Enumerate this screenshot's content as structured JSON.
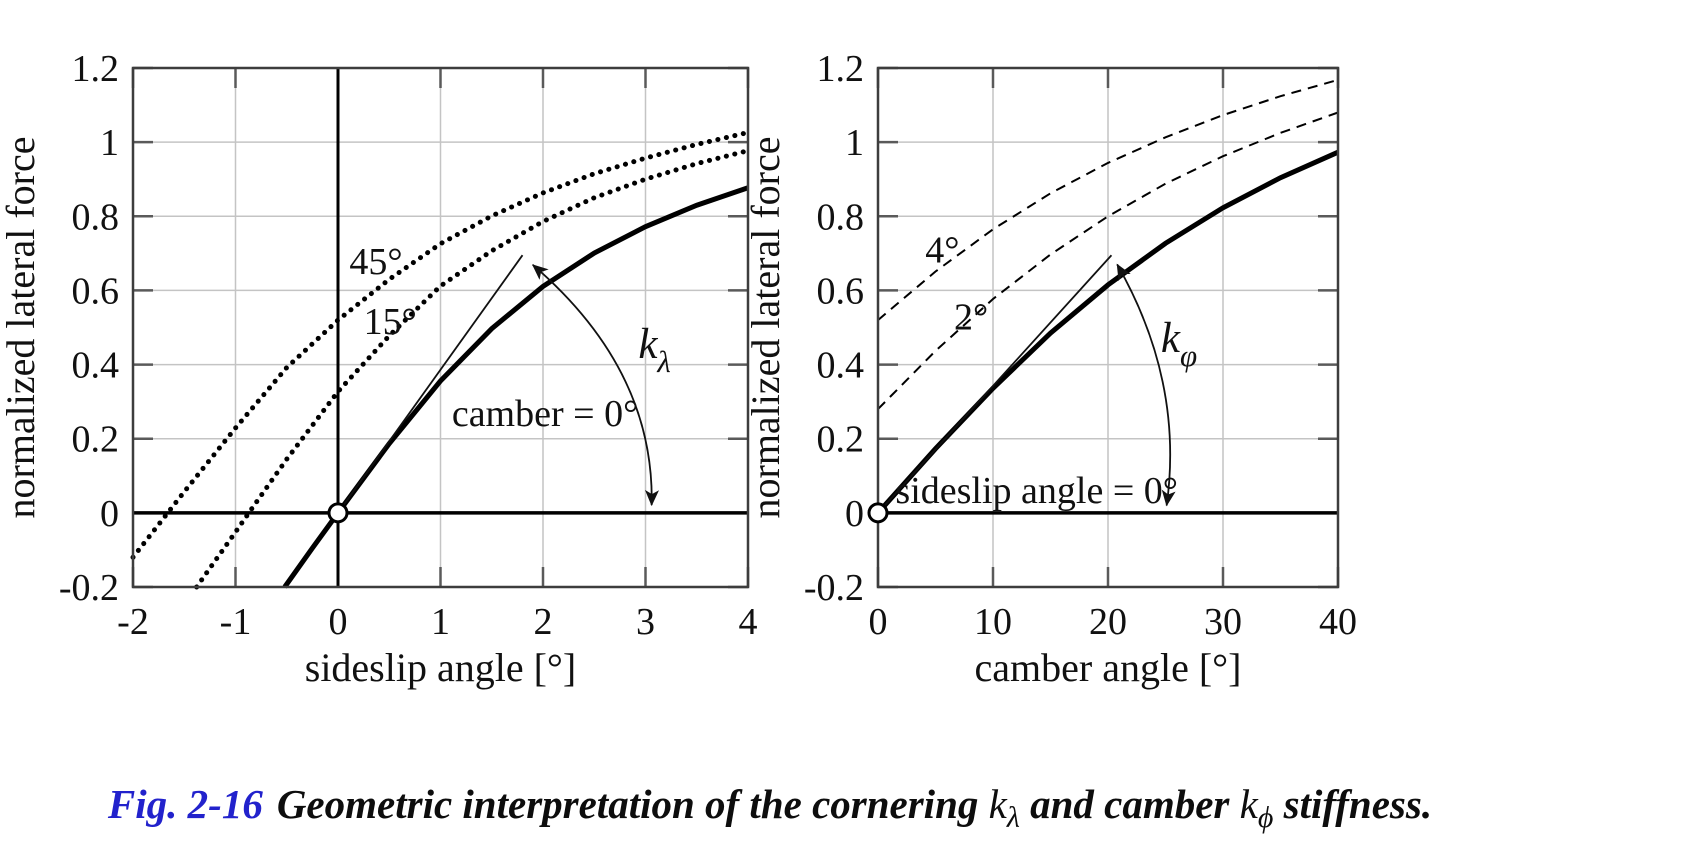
{
  "caption": {
    "fig_label": "Fig. 2-16",
    "body_1": "Geometric interpretation of the cornering ",
    "k_1": "k",
    "sub_1": "λ",
    "body_2": " and camber ",
    "k_2": "k",
    "sub_2": "ϕ",
    "body_3": " stiffness.",
    "accent_color": "#2222cc"
  },
  "chart_data": [
    {
      "type": "line",
      "title": "",
      "xlabel": "sideslip angle [°]",
      "ylabel": "normalized lateral force",
      "xlim": [
        -2,
        4
      ],
      "ylim": [
        -0.2,
        1.2
      ],
      "grid": true,
      "legend": "none",
      "zero_line_horizontal": true,
      "zero_line_vertical": true,
      "xtick_values": [
        -2,
        -1,
        0,
        1,
        2,
        3,
        4
      ],
      "xtick_labels": [
        "-2",
        "-1",
        "0",
        "1",
        "2",
        "3",
        "4"
      ],
      "ytick_values": [
        -0.2,
        0,
        0.2,
        0.4,
        0.6,
        0.8,
        1,
        1.2
      ],
      "ytick_labels": [
        "-0.2",
        "0",
        "0.2",
        "0.4",
        "0.6",
        "0.8",
        "1",
        "1.2"
      ],
      "series": [
        {
          "id": "camber45",
          "name": "45°",
          "line": "dotted",
          "points": [
            [
              -2,
              -0.12
            ],
            [
              -1.5,
              0.057
            ],
            [
              -1,
              0.229
            ],
            [
              -0.5,
              0.392
            ],
            [
              0,
              0.52
            ],
            [
              0.5,
              0.63
            ],
            [
              1,
              0.726
            ],
            [
              1.5,
              0.801
            ],
            [
              2,
              0.863
            ],
            [
              2.5,
              0.915
            ],
            [
              3,
              0.957
            ],
            [
              3.5,
              0.994
            ],
            [
              4,
              1.026
            ]
          ]
        },
        {
          "id": "camber15",
          "name": "15°",
          "line": "dotted",
          "points": [
            [
              -1.38,
              -0.2
            ],
            [
              -1.2,
              -0.13
            ],
            [
              -1,
              -0.052
            ],
            [
              -0.87,
              0
            ],
            [
              -0.5,
              0.145
            ],
            [
              0,
              0.327
            ],
            [
              0.5,
              0.478
            ],
            [
              1,
              0.612
            ],
            [
              1.5,
              0.707
            ],
            [
              2,
              0.786
            ],
            [
              2.5,
              0.85
            ],
            [
              3,
              0.9
            ],
            [
              3.5,
              0.942
            ],
            [
              4,
              0.977
            ]
          ]
        },
        {
          "id": "camber0",
          "name": "camber = 0°",
          "line": "solid",
          "points": [
            [
              -0.52,
              -0.2
            ],
            [
              -0.25,
              -0.095
            ],
            [
              0,
              0
            ],
            [
              0.5,
              0.187
            ],
            [
              1,
              0.356
            ],
            [
              1.5,
              0.497
            ],
            [
              2,
              0.611
            ],
            [
              2.5,
              0.701
            ],
            [
              3,
              0.772
            ],
            [
              3.5,
              0.83
            ],
            [
              4,
              0.877
            ]
          ]
        }
      ],
      "annotations": {
        "labels": [
          {
            "text": "45°",
            "x": 0.37,
            "y": 0.68
          },
          {
            "text": "15°",
            "x": 0.51,
            "y": 0.517
          },
          {
            "text": "camber = 0°",
            "x": 2.02,
            "y": 0.27
          }
        ],
        "tangent_line": {
          "from": [
            0,
            0
          ],
          "to": [
            1.8,
            0.695
          ]
        },
        "angle_arrow": {
          "start": [
            1.9,
            0.669
          ],
          "control": [
            3.09,
            0.386
          ],
          "end": [
            3.06,
            0.021
          ]
        },
        "stiffness_label": {
          "text": "k",
          "sub": "λ",
          "x": 2.93,
          "y": 0.418
        },
        "origin_marker": [
          0,
          0
        ]
      }
    },
    {
      "type": "line",
      "title": "",
      "xlabel": "camber angle [°]",
      "ylabel": "normalized lateral force",
      "xlim": [
        0,
        40
      ],
      "ylim": [
        -0.2,
        1.2
      ],
      "grid": true,
      "legend": "none",
      "zero_line_horizontal": true,
      "zero_line_vertical": false,
      "xtick_values": [
        0,
        10,
        20,
        30,
        40
      ],
      "xtick_labels": [
        "0",
        "10",
        "20",
        "30",
        "40"
      ],
      "ytick_values": [
        -0.2,
        0,
        0.2,
        0.4,
        0.6,
        0.8,
        1,
        1.2
      ],
      "ytick_labels": [
        "-0.2",
        "0",
        "0.2",
        "0.4",
        "0.6",
        "0.8",
        "1",
        "1.2"
      ],
      "series": [
        {
          "id": "sideslip4",
          "name": "4°",
          "line": "dashed",
          "points": [
            [
              0,
              0.52
            ],
            [
              5,
              0.651
            ],
            [
              10,
              0.765
            ],
            [
              15,
              0.862
            ],
            [
              20,
              0.944
            ],
            [
              25,
              1.013
            ],
            [
              30,
              1.073
            ],
            [
              35,
              1.124
            ],
            [
              40,
              1.168
            ]
          ]
        },
        {
          "id": "sideslip2",
          "name": "2°",
          "line": "dashed",
          "points": [
            [
              0,
              0.28
            ],
            [
              5,
              0.437
            ],
            [
              10,
              0.577
            ],
            [
              15,
              0.697
            ],
            [
              20,
              0.8
            ],
            [
              25,
              0.888
            ],
            [
              30,
              0.962
            ],
            [
              35,
              1.025
            ],
            [
              40,
              1.08
            ]
          ]
        },
        {
          "id": "sideslip0",
          "name": "sideslip angle = 0°",
          "line": "solid",
          "points": [
            [
              0,
              0
            ],
            [
              5,
              0.173
            ],
            [
              10,
              0.336
            ],
            [
              15,
              0.485
            ],
            [
              20,
              0.615
            ],
            [
              25,
              0.727
            ],
            [
              30,
              0.823
            ],
            [
              35,
              0.904
            ],
            [
              40,
              0.973
            ]
          ]
        }
      ],
      "annotations": {
        "labels": [
          {
            "text": "4°",
            "x": 5.6,
            "y": 0.71
          },
          {
            "text": "2°",
            "x": 8.1,
            "y": 0.53
          },
          {
            "text": "sideslip angle = 0°",
            "x": 13.8,
            "y": 0.062
          }
        ],
        "tangent_line": {
          "from": [
            0,
            0
          ],
          "to": [
            20.3,
            0.695
          ]
        },
        "angle_arrow": {
          "start": [
            20.8,
            0.67
          ],
          "control": [
            26.6,
            0.355
          ],
          "end": [
            25.1,
            0.02
          ]
        },
        "stiffness_label": {
          "text": "k",
          "sub": "φ",
          "x": 24.6,
          "y": 0.434
        },
        "origin_marker": [
          0,
          0
        ]
      }
    }
  ]
}
